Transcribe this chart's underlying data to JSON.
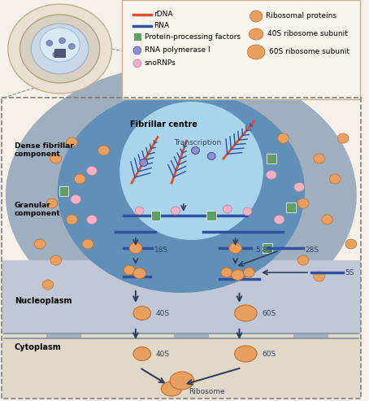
{
  "fig_width": 4.54,
  "fig_height": 4.93,
  "dpi": 100,
  "bg_color": "#f5f0e8",
  "main_box_color": "#ddd5c8",
  "nucleolus_outer_color": "#b8c8d8",
  "nucleolus_inner_color": "#c8dce8",
  "fibrillar_centre_color": "#d8ecf8",
  "nucleoplasm_color": "#c8ccd8",
  "cytoplasm_color": "#e8e0d0",
  "ribosomal_protein_color": "#e8a060",
  "subunit_40s_color": "#e8a060",
  "subunit_60s_color": "#e8a060",
  "snornp_color": "#e8a0b8",
  "rna_pol_color": "#8080c0",
  "ppf_color": "#60a060",
  "rna_color": "#e05030",
  "rrna_color": "#3050a0",
  "arrow_color": "#304060",
  "legend_box_color": "#f8f4ee",
  "legend_border_color": "#c0b090",
  "dashed_border_color": "#808080",
  "title_text": "Dense fibrillar\ncomponent",
  "fibrillar_centre_text": "Fibrillar centre",
  "transcription_text": "Transcription",
  "granular_text": "Granular\ncomponent",
  "nucleoplasm_text": "Nucleoplasm",
  "cytoplasm_text": "Cytoplasm"
}
